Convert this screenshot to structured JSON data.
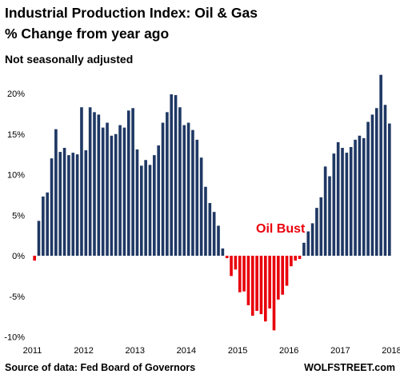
{
  "chart_data": {
    "type": "bar",
    "title": "Industrial Production Index: Oil & Gas",
    "subtitle": "% Change from year ago",
    "note": "Not seasonally adjusted",
    "source": "Source of data: Fed Board of Governors",
    "brand": "WOLFSTREET.com",
    "annotation": {
      "text": "Oil Bust",
      "color": "#e8000b"
    },
    "colors": {
      "positive": "#1f3864",
      "negative": "#e8000b"
    },
    "x_start": "2011-01",
    "x_tick_labels": [
      "2011",
      "2012",
      "2013",
      "2014",
      "2015",
      "2016",
      "2017",
      "2018"
    ],
    "y_tick_labels": [
      "20%",
      "15%",
      "10%",
      "5%",
      "0%",
      "-5%",
      "-10%"
    ],
    "y_ticks": [
      20,
      15,
      10,
      5,
      0,
      -5,
      -10
    ],
    "ylim": [
      -10.5,
      23
    ],
    "xlim": [
      "2011-01",
      "2018-01"
    ],
    "grid": false,
    "values": [
      -0.6,
      4.3,
      7.3,
      7.8,
      12.0,
      15.6,
      12.8,
      13.3,
      12.4,
      12.7,
      12.5,
      18.3,
      13.0,
      18.3,
      17.7,
      17.4,
      15.8,
      16.4,
      14.8,
      15.0,
      16.1,
      15.8,
      17.9,
      18.2,
      13.1,
      11.1,
      11.8,
      11.2,
      12.4,
      13.6,
      16.4,
      17.7,
      19.9,
      19.8,
      18.3,
      16.1,
      16.4,
      15.5,
      14.3,
      12.1,
      8.5,
      6.5,
      5.4,
      3.7,
      0.9,
      -0.3,
      -2.5,
      -1.7,
      -4.5,
      -4.4,
      -6.1,
      -7.4,
      -6.8,
      -7.2,
      -8.1,
      -6.5,
      -9.2,
      -5.4,
      -4.8,
      -3.7,
      -1.3,
      -0.6,
      -0.4,
      1.6,
      3.0,
      4.0,
      5.9,
      7.2,
      11.0,
      9.8,
      12.6,
      14.0,
      13.3,
      12.7,
      13.4,
      14.3,
      14.8,
      14.5,
      16.5,
      17.4,
      18.2,
      22.3,
      18.6,
      16.3
    ]
  }
}
